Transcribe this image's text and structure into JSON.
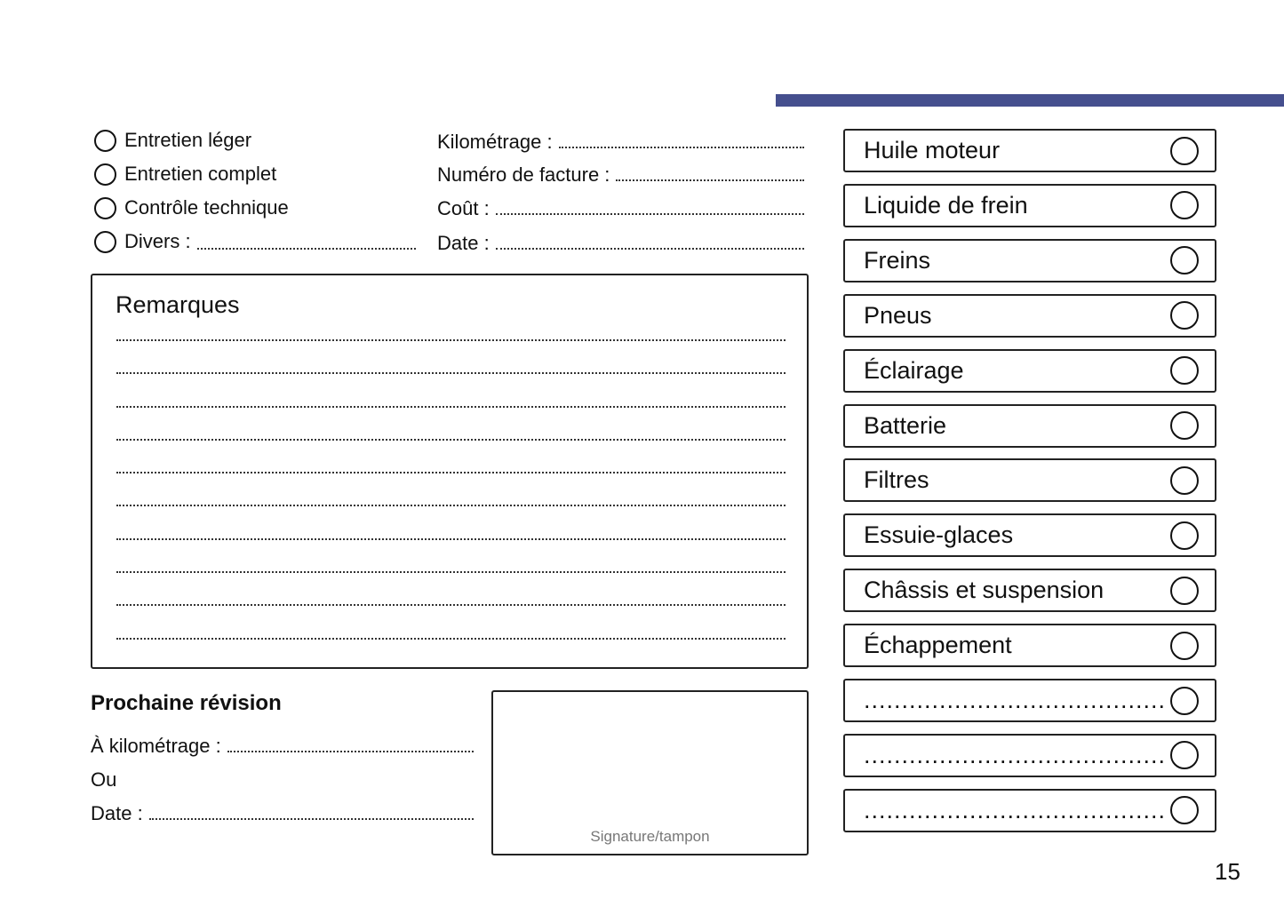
{
  "accent_color": "#454f8e",
  "service_types": [
    {
      "label": "Entretien léger",
      "has_line": false
    },
    {
      "label": "Entretien complet",
      "has_line": false
    },
    {
      "label": "Contrôle technique",
      "has_line": false
    },
    {
      "label": "Divers :",
      "has_line": true
    }
  ],
  "fields": [
    "Kilométrage :",
    "Numéro de facture :",
    "Coût :",
    "Date :"
  ],
  "remarks": {
    "title": "Remarques"
  },
  "next_service": {
    "title": "Prochaine révision",
    "km_label": "À kilométrage :",
    "or_label": "Ou",
    "date_label": "Date :"
  },
  "signature": {
    "label": "Signature/tampon"
  },
  "checklist": [
    "Huile moteur",
    "Liquide de frein",
    "Freins",
    "Pneus",
    "Éclairage",
    "Batterie",
    "Filtres",
    "Essuie-glaces",
    "Châssis et suspension",
    "Échappement",
    "........................................",
    "........................................",
    "........................................"
  ],
  "page_number": "15"
}
